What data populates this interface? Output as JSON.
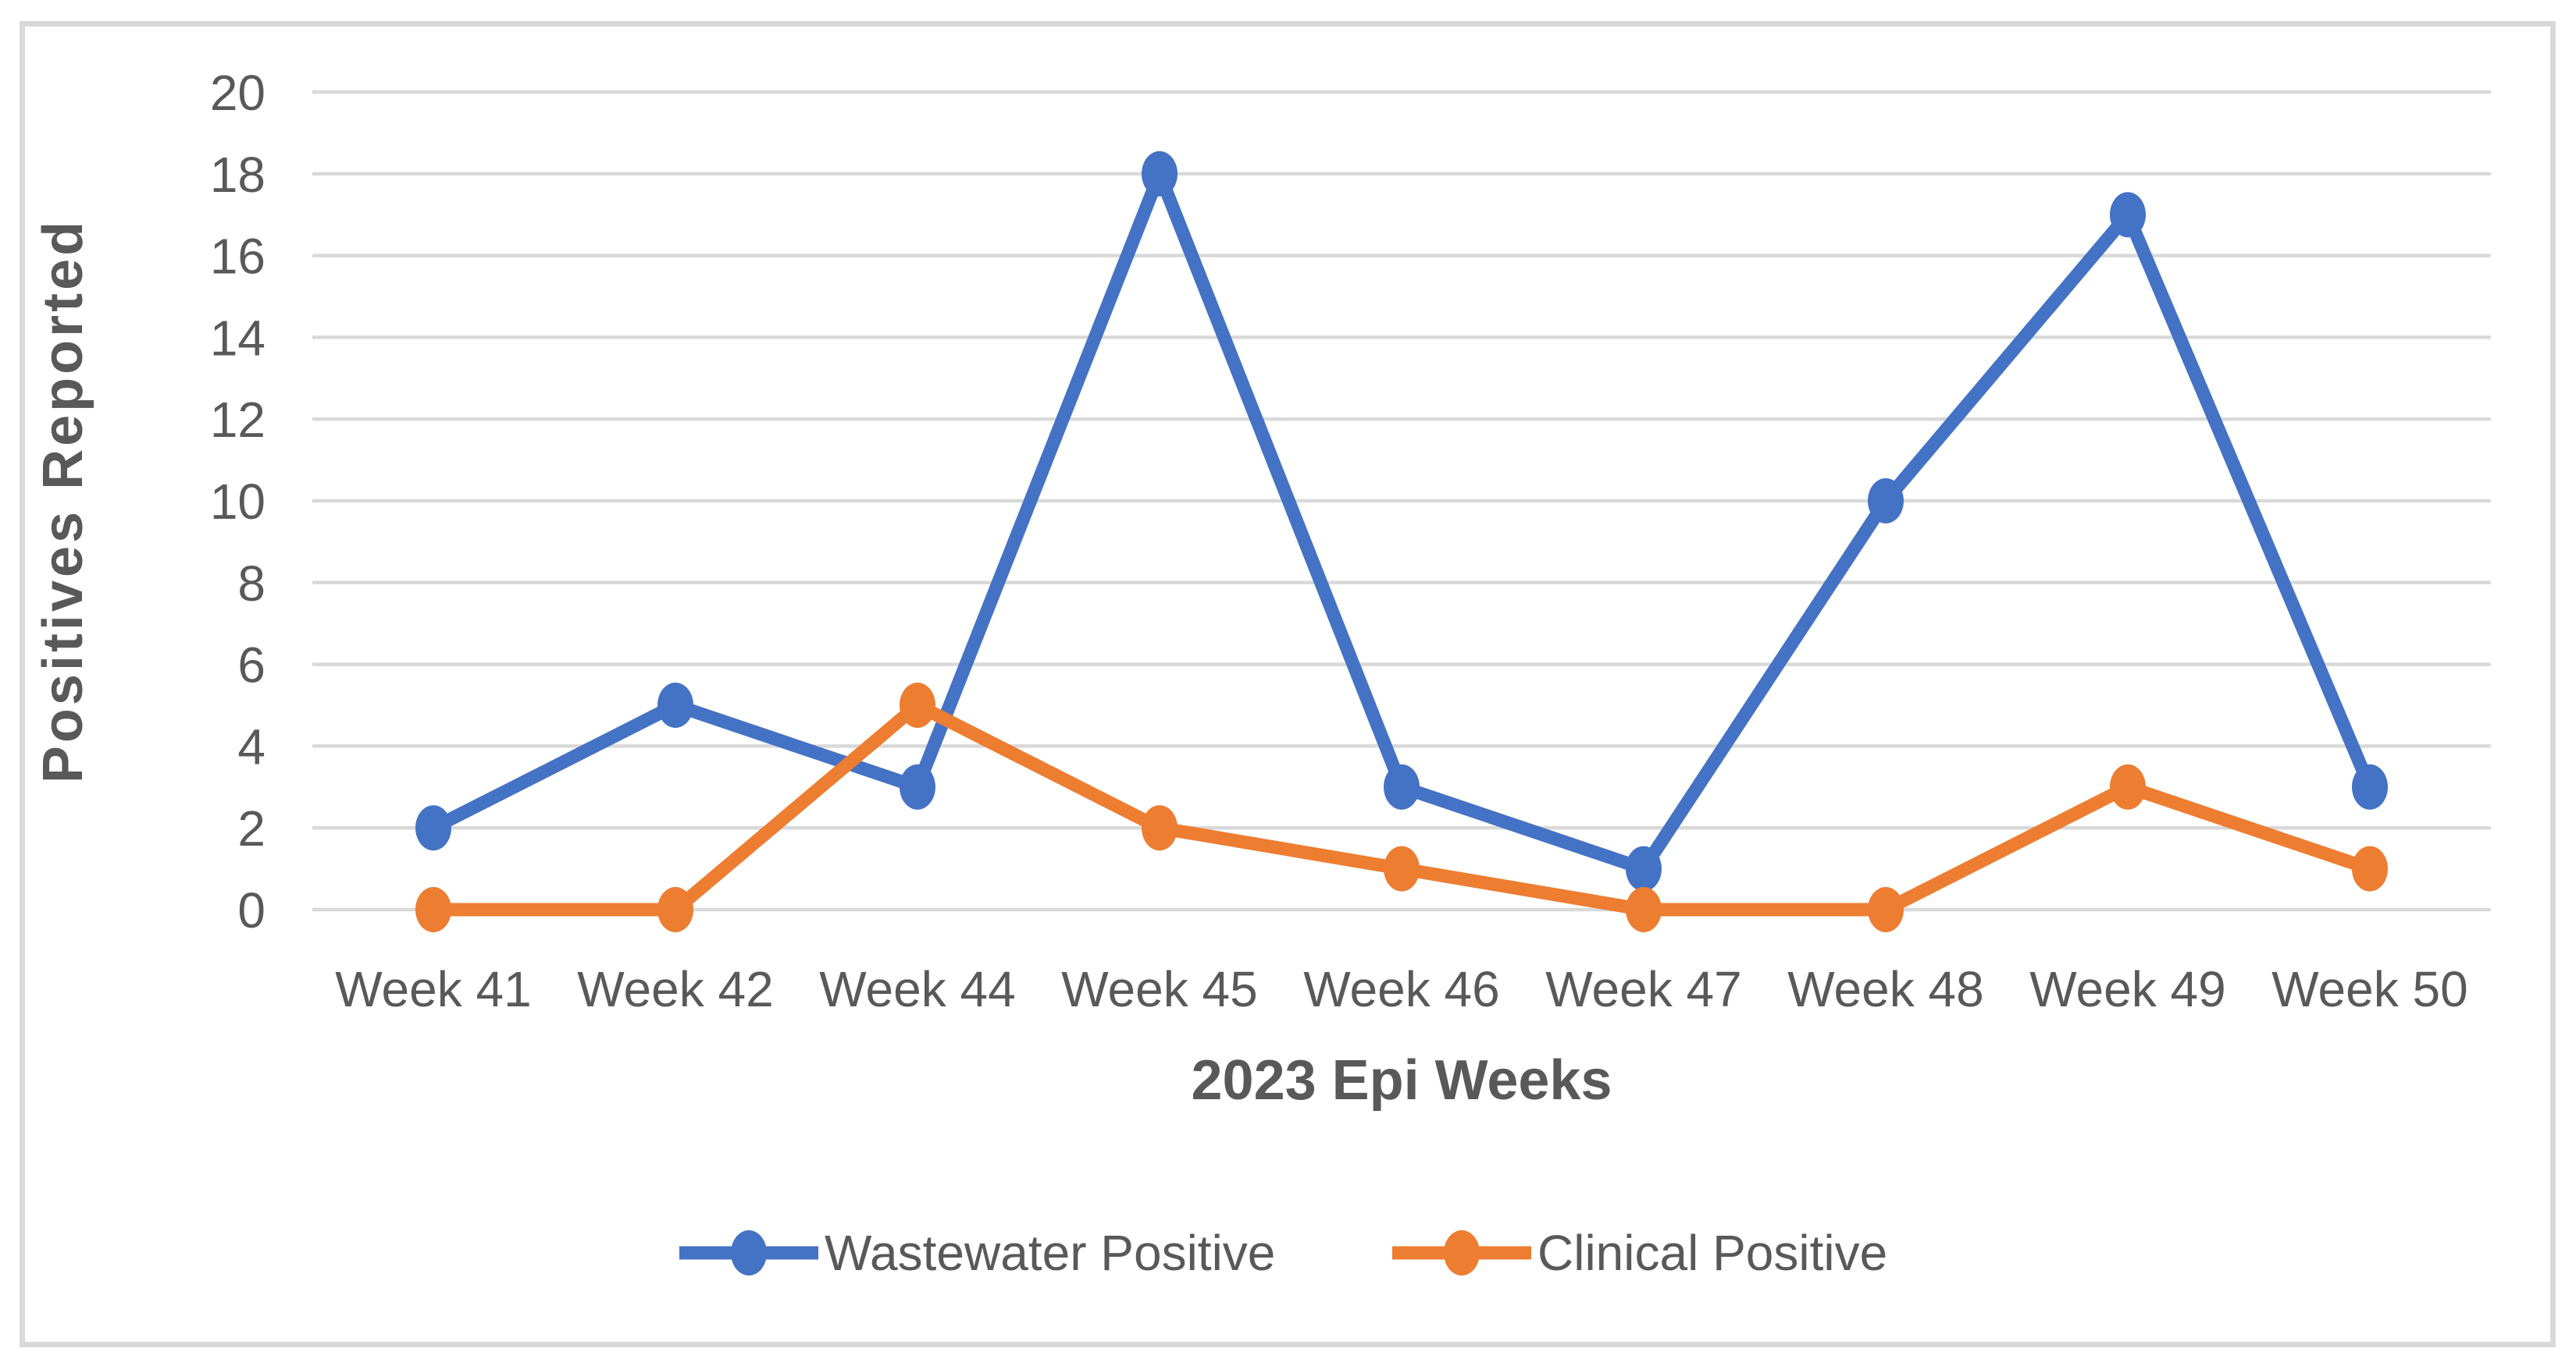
{
  "chart_data": {
    "type": "line",
    "categories": [
      "Week 41",
      "Week 42",
      "Week 44",
      "Week 45",
      "Week 46",
      "Week 47",
      "Week 48",
      "Week 49",
      "Week 50"
    ],
    "series": [
      {
        "name": "Wastewater Positive",
        "color": "#4472C4",
        "values": [
          2,
          5,
          3,
          18,
          3,
          1,
          10,
          17,
          3
        ]
      },
      {
        "name": "Clinical Positive",
        "color": "#ED7D31",
        "values": [
          0,
          0,
          5,
          2,
          1,
          0,
          0,
          3,
          1
        ]
      }
    ],
    "title": "",
    "xlabel": "2023 Epi Weeks",
    "ylabel": "Positives Reported",
    "ylim": [
      0,
      20
    ],
    "ytick_step": 2,
    "yticks": [
      0,
      2,
      4,
      6,
      8,
      10,
      12,
      14,
      16,
      18,
      20
    ],
    "grid": true,
    "legend_position": "bottom",
    "marker": "circle"
  },
  "colors": {
    "grid": "#D9D9D9",
    "frame_border": "#D9D9D9",
    "text": "#595959",
    "background": "#FFFFFF"
  }
}
